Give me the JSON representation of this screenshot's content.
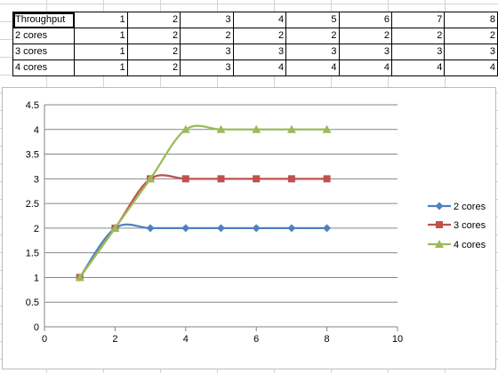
{
  "table": {
    "header": {
      "label": "Throughput",
      "values": [
        "1",
        "2",
        "3",
        "4",
        "5",
        "6",
        "7",
        "8"
      ]
    },
    "rows": [
      {
        "label": "2 cores",
        "values": [
          "1",
          "2",
          "2",
          "2",
          "2",
          "2",
          "2",
          "2"
        ]
      },
      {
        "label": "3 cores",
        "values": [
          "1",
          "2",
          "3",
          "3",
          "3",
          "3",
          "3",
          "3"
        ]
      },
      {
        "label": "4 cores",
        "values": [
          "1",
          "2",
          "3",
          "4",
          "4",
          "4",
          "4",
          "4"
        ]
      }
    ]
  },
  "chart_data": {
    "type": "scatter",
    "smooth_lines": true,
    "x": [
      1,
      2,
      3,
      4,
      5,
      6,
      7,
      8
    ],
    "series": [
      {
        "name": "2 cores",
        "values": [
          1,
          2,
          2,
          2,
          2,
          2,
          2,
          2
        ],
        "color": "#4f81bd",
        "marker": "diamond"
      },
      {
        "name": "3 cores",
        "values": [
          1,
          2,
          3,
          3,
          3,
          3,
          3,
          3
        ],
        "color": "#c0504d",
        "marker": "square"
      },
      {
        "name": "4 cores",
        "values": [
          1,
          2,
          3,
          4,
          4,
          4,
          4,
          4
        ],
        "color": "#9bbb59",
        "marker": "triangle"
      }
    ],
    "xlim": [
      0,
      10
    ],
    "ylim": [
      0,
      4.5
    ],
    "x_ticks": [
      "0",
      "2",
      "4",
      "6",
      "8",
      "10"
    ],
    "y_ticks": [
      "0",
      "0.5",
      "1",
      "1.5",
      "2",
      "2.5",
      "3",
      "3.5",
      "4",
      "4.5"
    ],
    "grid": "horizontal",
    "legend_position": "right",
    "title": "",
    "xlabel": "",
    "ylabel": ""
  }
}
